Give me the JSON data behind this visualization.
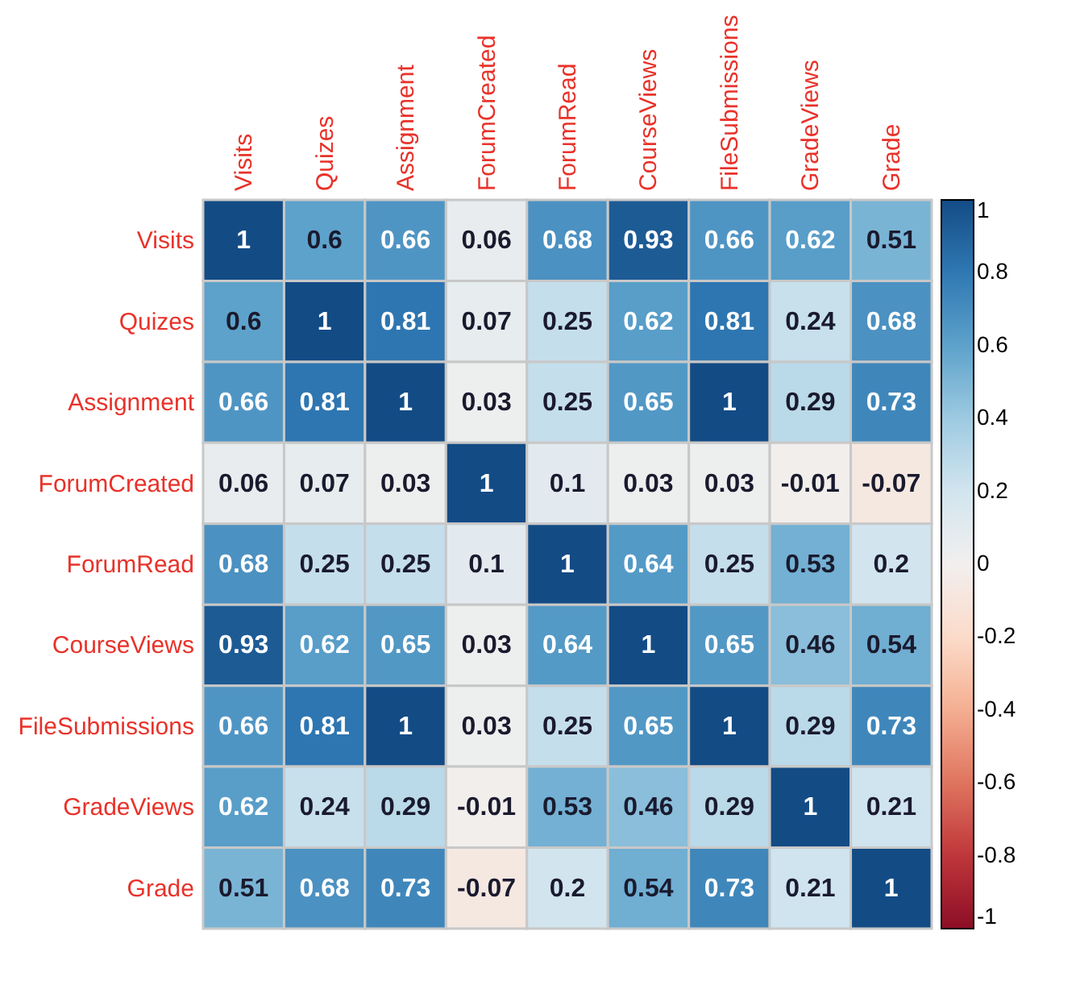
{
  "chart_data": {
    "type": "heatmap",
    "categories": [
      "Visits",
      "Quizes",
      "Assignment",
      "ForumCreated",
      "ForumRead",
      "CourseViews",
      "FileSubmissions",
      "GradeViews",
      "Grade"
    ],
    "y_categories": [
      "Visits",
      "Quizes",
      "Assignment",
      "ForumCreated",
      "ForumRead",
      "CourseViews",
      "FileSubmissions",
      "GradeViews",
      "Grade"
    ],
    "cells": [
      [
        1,
        0.6,
        0.66,
        0.06,
        0.68,
        0.93,
        0.66,
        0.62,
        0.51
      ],
      [
        0.6,
        1,
        0.81,
        0.07,
        0.25,
        0.62,
        0.81,
        0.24,
        0.68
      ],
      [
        0.66,
        0.81,
        1,
        0.03,
        0.25,
        0.65,
        1,
        0.29,
        0.73
      ],
      [
        0.06,
        0.07,
        0.03,
        1,
        0.1,
        0.03,
        0.03,
        -0.01,
        -0.07
      ],
      [
        0.68,
        0.25,
        0.25,
        0.1,
        1,
        0.64,
        0.25,
        0.53,
        0.2
      ],
      [
        0.93,
        0.62,
        0.65,
        0.03,
        0.64,
        1,
        0.65,
        0.46,
        0.54
      ],
      [
        0.66,
        0.81,
        1,
        0.03,
        0.25,
        0.65,
        1,
        0.29,
        0.73
      ],
      [
        0.62,
        0.24,
        0.29,
        -0.01,
        0.53,
        0.46,
        0.29,
        1,
        0.21
      ],
      [
        0.51,
        0.68,
        0.73,
        -0.07,
        0.2,
        0.54,
        0.73,
        0.21,
        1
      ]
    ],
    "clim": [
      -1,
      1
    ],
    "cticks": [
      -1,
      -0.8,
      -0.6,
      -0.4,
      -0.2,
      0,
      0.2,
      0.4,
      0.6,
      0.8,
      1
    ],
    "data_labels": true
  }
}
